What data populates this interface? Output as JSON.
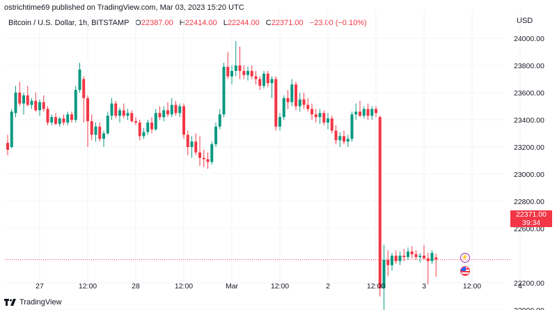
{
  "header": {
    "publish_line": "ostrichtime69 published on TradingView.com, Mar 03, 2023 15:20 UTC",
    "symbol": "Bitcoin / U.S. Dollar, 1h, BITSTAMP",
    "open_label": "O",
    "open": "22387.00",
    "high_label": "H",
    "high": "22414.00",
    "low_label": "L",
    "low": "22244.00",
    "close_label": "C",
    "close": "22371.00",
    "change": "−23.00 (−0.10%)"
  },
  "currency": "USD",
  "last_price": {
    "price": "22371.00",
    "countdown": "39:34"
  },
  "footer": {
    "brand": "TradingView"
  },
  "colors": {
    "up": "#089981",
    "down": "#f23645",
    "grid": "#f0f3fa",
    "text": "#131722"
  },
  "icons": [
    "lightning-icon",
    "us-flag-icon",
    "tradingview-logo-icon"
  ],
  "chart_data": {
    "type": "candlestick",
    "xlabel": "",
    "ylabel": "",
    "grid": true,
    "ylim": [
      21850,
      24200
    ],
    "y_ticks": [
      "24000.00",
      "23800.00",
      "23600.00",
      "23400.00",
      "23200.00",
      "23000.00",
      "22800.00",
      "22600.00",
      "22200.00",
      "22000.00"
    ],
    "y_tick_values": [
      24000,
      23800,
      23600,
      23400,
      23200,
      23000,
      22800,
      22600,
      22200,
      22000
    ],
    "x_ticks": [
      "27",
      "12:00",
      "28",
      "12:00",
      "Mar",
      "12:00",
      "2",
      "12:00",
      "3",
      "12:00",
      "4"
    ],
    "x_tick_bars": [
      8,
      20,
      32,
      44,
      56,
      68,
      80,
      92,
      104,
      116,
      128
    ],
    "last_price_line": 22371,
    "candles": [
      {
        "o": 23230,
        "h": 23290,
        "l": 23140,
        "c": 23180
      },
      {
        "o": 23200,
        "h": 23480,
        "l": 23190,
        "c": 23460
      },
      {
        "o": 23450,
        "h": 23650,
        "l": 23420,
        "c": 23600
      },
      {
        "o": 23600,
        "h": 23680,
        "l": 23500,
        "c": 23520
      },
      {
        "o": 23520,
        "h": 23600,
        "l": 23440,
        "c": 23580
      },
      {
        "o": 23580,
        "h": 23650,
        "l": 23500,
        "c": 23510
      },
      {
        "o": 23510,
        "h": 23560,
        "l": 23480,
        "c": 23540
      },
      {
        "o": 23540,
        "h": 23600,
        "l": 23460,
        "c": 23470
      },
      {
        "o": 23470,
        "h": 23550,
        "l": 23430,
        "c": 23530
      },
      {
        "o": 23530,
        "h": 23580,
        "l": 23460,
        "c": 23480
      },
      {
        "o": 23480,
        "h": 23500,
        "l": 23360,
        "c": 23380
      },
      {
        "o": 23380,
        "h": 23440,
        "l": 23360,
        "c": 23420
      },
      {
        "o": 23420,
        "h": 23450,
        "l": 23360,
        "c": 23370
      },
      {
        "o": 23370,
        "h": 23420,
        "l": 23350,
        "c": 23410
      },
      {
        "o": 23410,
        "h": 23440,
        "l": 23360,
        "c": 23380
      },
      {
        "o": 23380,
        "h": 23460,
        "l": 23360,
        "c": 23440
      },
      {
        "o": 23440,
        "h": 23460,
        "l": 23380,
        "c": 23400
      },
      {
        "o": 23400,
        "h": 23650,
        "l": 23380,
        "c": 23620
      },
      {
        "o": 23620,
        "h": 23820,
        "l": 23600,
        "c": 23770
      },
      {
        "o": 23700,
        "h": 23720,
        "l": 23380,
        "c": 23560
      },
      {
        "o": 23560,
        "h": 23580,
        "l": 23200,
        "c": 23390
      },
      {
        "o": 23390,
        "h": 23440,
        "l": 23250,
        "c": 23290
      },
      {
        "o": 23290,
        "h": 23380,
        "l": 23240,
        "c": 23350
      },
      {
        "o": 23350,
        "h": 23380,
        "l": 23240,
        "c": 23260
      },
      {
        "o": 23260,
        "h": 23320,
        "l": 23200,
        "c": 23300
      },
      {
        "o": 23300,
        "h": 23460,
        "l": 23290,
        "c": 23430
      },
      {
        "o": 23430,
        "h": 23560,
        "l": 23400,
        "c": 23520
      },
      {
        "o": 23520,
        "h": 23540,
        "l": 23410,
        "c": 23430
      },
      {
        "o": 23430,
        "h": 23490,
        "l": 23380,
        "c": 23470
      },
      {
        "o": 23470,
        "h": 23520,
        "l": 23410,
        "c": 23430
      },
      {
        "o": 23430,
        "h": 23480,
        "l": 23400,
        "c": 23450
      },
      {
        "o": 23450,
        "h": 23470,
        "l": 23380,
        "c": 23390
      },
      {
        "o": 23390,
        "h": 23420,
        "l": 23360,
        "c": 23380
      },
      {
        "o": 23380,
        "h": 23400,
        "l": 23250,
        "c": 23280
      },
      {
        "o": 23280,
        "h": 23340,
        "l": 23260,
        "c": 23310
      },
      {
        "o": 23310,
        "h": 23400,
        "l": 23290,
        "c": 23380
      },
      {
        "o": 23380,
        "h": 23420,
        "l": 23300,
        "c": 23330
      },
      {
        "o": 23330,
        "h": 23480,
        "l": 23320,
        "c": 23450
      },
      {
        "o": 23450,
        "h": 23500,
        "l": 23400,
        "c": 23420
      },
      {
        "o": 23420,
        "h": 23500,
        "l": 23390,
        "c": 23470
      },
      {
        "o": 23470,
        "h": 23530,
        "l": 23420,
        "c": 23440
      },
      {
        "o": 23440,
        "h": 23560,
        "l": 23420,
        "c": 23510
      },
      {
        "o": 23510,
        "h": 23540,
        "l": 23430,
        "c": 23450
      },
      {
        "o": 23450,
        "h": 23520,
        "l": 23420,
        "c": 23500
      },
      {
        "o": 23500,
        "h": 23520,
        "l": 23260,
        "c": 23290
      },
      {
        "o": 23290,
        "h": 23320,
        "l": 23140,
        "c": 23200
      },
      {
        "o": 23200,
        "h": 23280,
        "l": 23120,
        "c": 23240
      },
      {
        "o": 23240,
        "h": 23300,
        "l": 23140,
        "c": 23160
      },
      {
        "o": 23160,
        "h": 23280,
        "l": 23060,
        "c": 23120
      },
      {
        "o": 23120,
        "h": 23180,
        "l": 23050,
        "c": 23110
      },
      {
        "o": 23110,
        "h": 23160,
        "l": 23040,
        "c": 23090
      },
      {
        "o": 23090,
        "h": 23240,
        "l": 23070,
        "c": 23220
      },
      {
        "o": 23220,
        "h": 23380,
        "l": 23200,
        "c": 23350
      },
      {
        "o": 23350,
        "h": 23480,
        "l": 23330,
        "c": 23440
      },
      {
        "o": 23440,
        "h": 23820,
        "l": 23420,
        "c": 23790
      },
      {
        "o": 23790,
        "h": 23900,
        "l": 23700,
        "c": 23720
      },
      {
        "o": 23720,
        "h": 23800,
        "l": 23660,
        "c": 23760
      },
      {
        "o": 23760,
        "h": 23980,
        "l": 23720,
        "c": 23800
      },
      {
        "o": 23800,
        "h": 23940,
        "l": 23700,
        "c": 23760
      },
      {
        "o": 23760,
        "h": 23800,
        "l": 23700,
        "c": 23730
      },
      {
        "o": 23730,
        "h": 23790,
        "l": 23690,
        "c": 23760
      },
      {
        "o": 23760,
        "h": 23800,
        "l": 23700,
        "c": 23720
      },
      {
        "o": 23720,
        "h": 23760,
        "l": 23660,
        "c": 23700
      },
      {
        "o": 23700,
        "h": 23720,
        "l": 23620,
        "c": 23650
      },
      {
        "o": 23650,
        "h": 23760,
        "l": 23630,
        "c": 23740
      },
      {
        "o": 23740,
        "h": 23760,
        "l": 23640,
        "c": 23670
      },
      {
        "o": 23670,
        "h": 23720,
        "l": 23560,
        "c": 23700
      },
      {
        "o": 23700,
        "h": 23720,
        "l": 23320,
        "c": 23350
      },
      {
        "o": 23350,
        "h": 23450,
        "l": 23320,
        "c": 23420
      },
      {
        "o": 23420,
        "h": 23580,
        "l": 23400,
        "c": 23560
      },
      {
        "o": 23560,
        "h": 23620,
        "l": 23480,
        "c": 23530
      },
      {
        "o": 23530,
        "h": 23700,
        "l": 23500,
        "c": 23660
      },
      {
        "o": 23660,
        "h": 23680,
        "l": 23470,
        "c": 23500
      },
      {
        "o": 23500,
        "h": 23600,
        "l": 23460,
        "c": 23550
      },
      {
        "o": 23550,
        "h": 23600,
        "l": 23480,
        "c": 23510
      },
      {
        "o": 23510,
        "h": 23560,
        "l": 23460,
        "c": 23480
      },
      {
        "o": 23480,
        "h": 23520,
        "l": 23400,
        "c": 23440
      },
      {
        "o": 23440,
        "h": 23480,
        "l": 23380,
        "c": 23420
      },
      {
        "o": 23420,
        "h": 23480,
        "l": 23370,
        "c": 23450
      },
      {
        "o": 23450,
        "h": 23470,
        "l": 23360,
        "c": 23380
      },
      {
        "o": 23380,
        "h": 23450,
        "l": 23330,
        "c": 23410
      },
      {
        "o": 23410,
        "h": 23430,
        "l": 23300,
        "c": 23320
      },
      {
        "o": 23320,
        "h": 23360,
        "l": 23220,
        "c": 23250
      },
      {
        "o": 23250,
        "h": 23310,
        "l": 23200,
        "c": 23280
      },
      {
        "o": 23280,
        "h": 23320,
        "l": 23220,
        "c": 23240
      },
      {
        "o": 23240,
        "h": 23290,
        "l": 23200,
        "c": 23260
      },
      {
        "o": 23260,
        "h": 23460,
        "l": 23240,
        "c": 23440
      },
      {
        "o": 23440,
        "h": 23520,
        "l": 23400,
        "c": 23460
      },
      {
        "o": 23460,
        "h": 23540,
        "l": 23420,
        "c": 23430
      },
      {
        "o": 23430,
        "h": 23500,
        "l": 23410,
        "c": 23480
      },
      {
        "o": 23480,
        "h": 23520,
        "l": 23400,
        "c": 23430
      },
      {
        "o": 23430,
        "h": 23500,
        "l": 23400,
        "c": 23480
      },
      {
        "o": 23480,
        "h": 23500,
        "l": 23420,
        "c": 23450
      },
      {
        "o": 23420,
        "h": 23430,
        "l": 22100,
        "c": 22160
      },
      {
        "o": 22160,
        "h": 22480,
        "l": 21990,
        "c": 22370
      },
      {
        "o": 22370,
        "h": 22440,
        "l": 22250,
        "c": 22330
      },
      {
        "o": 22330,
        "h": 22420,
        "l": 22290,
        "c": 22400
      },
      {
        "o": 22400,
        "h": 22440,
        "l": 22340,
        "c": 22360
      },
      {
        "o": 22360,
        "h": 22430,
        "l": 22330,
        "c": 22400
      },
      {
        "o": 22400,
        "h": 22450,
        "l": 22360,
        "c": 22390
      },
      {
        "o": 22390,
        "h": 22460,
        "l": 22370,
        "c": 22430
      },
      {
        "o": 22430,
        "h": 22470,
        "l": 22380,
        "c": 22410
      },
      {
        "o": 22410,
        "h": 22440,
        "l": 22370,
        "c": 22390
      },
      {
        "o": 22390,
        "h": 22420,
        "l": 22350,
        "c": 22400
      },
      {
        "o": 22400,
        "h": 22480,
        "l": 22370,
        "c": 22380
      },
      {
        "o": 22380,
        "h": 22420,
        "l": 22190,
        "c": 22360
      },
      {
        "o": 22360,
        "h": 22440,
        "l": 22340,
        "c": 22420
      },
      {
        "o": 22387,
        "h": 22414,
        "l": 22244,
        "c": 22371
      }
    ]
  }
}
